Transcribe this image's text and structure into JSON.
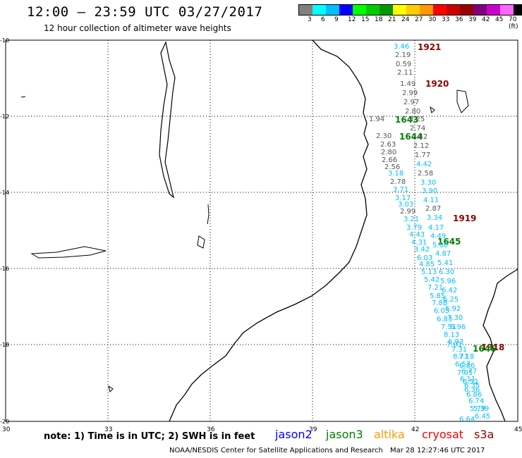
{
  "header": {
    "title": "12:00 – 23:59 UTC 03/27/2017",
    "subtitle": "12 hour collection of altimeter wave heights"
  },
  "scale": {
    "colors": [
      "#808080",
      "#00ffff",
      "#00bfff",
      "#0000ff",
      "#00ff00",
      "#00cc00",
      "#009900",
      "#ffff00",
      "#ffcc00",
      "#ff9900",
      "#ff0000",
      "#cc0000",
      "#990000",
      "#800080",
      "#cc00cc",
      "#ff66ff",
      "#000000"
    ],
    "labels": [
      "3",
      "6",
      "9",
      "12",
      "15",
      "18",
      "21",
      "24",
      "27",
      "30",
      "33",
      "36",
      "39",
      "42",
      "45",
      "70 (ft)"
    ]
  },
  "axes": {
    "lon_ticks": [
      "30",
      "33",
      "36",
      "39",
      "42",
      "45"
    ],
    "lat_ticks": [
      "-10",
      "-12",
      "-14",
      "-16",
      "-18",
      "-20"
    ]
  },
  "passes": [
    {
      "label": "1921",
      "color": "#8b0000"
    },
    {
      "label": "1920",
      "color": "#8b0000"
    },
    {
      "label": "1643",
      "color": "#008000"
    },
    {
      "label": "1644",
      "color": "#008000"
    },
    {
      "label": "1919",
      "color": "#8b0000"
    },
    {
      "label": "1645",
      "color": "#008000"
    },
    {
      "label": "1918",
      "color": "#8b0000"
    },
    {
      "label": "1646",
      "color": "#008000"
    }
  ],
  "wave_values": [
    {
      "v": "3.46",
      "c": "#00bfff"
    },
    {
      "v": "2.19",
      "c": "#555555"
    },
    {
      "v": "0.59",
      "c": "#555555"
    },
    {
      "v": "2.11",
      "c": "#555555"
    },
    {
      "v": "1.49",
      "c": "#555555"
    },
    {
      "v": "2.99",
      "c": "#555555"
    },
    {
      "v": "2.97",
      "c": "#555555"
    },
    {
      "v": "2.80",
      "c": "#555555"
    },
    {
      "v": "1.94",
      "c": "#555555"
    },
    {
      "v": "3.25",
      "c": "#555555"
    },
    {
      "v": "2.74",
      "c": "#555555"
    },
    {
      "v": "2.30",
      "c": "#555555"
    },
    {
      "v": "2.42",
      "c": "#555555"
    },
    {
      "v": "2.63",
      "c": "#555555"
    },
    {
      "v": "2.12",
      "c": "#555555"
    },
    {
      "v": "2.80",
      "c": "#555555"
    },
    {
      "v": "1.77",
      "c": "#555555"
    },
    {
      "v": "2.66",
      "c": "#555555"
    },
    {
      "v": "4.42",
      "c": "#00bfff"
    },
    {
      "v": "2.56",
      "c": "#555555"
    },
    {
      "v": "3.18",
      "c": "#00bfff"
    },
    {
      "v": "2.58",
      "c": "#555555"
    },
    {
      "v": "2.78",
      "c": "#555555"
    },
    {
      "v": "3.30",
      "c": "#00bfff"
    },
    {
      "v": "3.71",
      "c": "#00bfff"
    },
    {
      "v": "3.90",
      "c": "#00bfff"
    },
    {
      "v": "3.17",
      "c": "#00bfff"
    },
    {
      "v": "4.11",
      "c": "#00bfff"
    },
    {
      "v": "3.03",
      "c": "#00bfff"
    },
    {
      "v": "2.87",
      "c": "#555555"
    },
    {
      "v": "2.99",
      "c": "#555555"
    },
    {
      "v": "3.21",
      "c": "#00bfff"
    },
    {
      "v": "3.34",
      "c": "#00bfff"
    },
    {
      "v": "3.79",
      "c": "#00bfff"
    },
    {
      "v": "4.17",
      "c": "#00bfff"
    },
    {
      "v": "4.43",
      "c": "#00bfff"
    },
    {
      "v": "4.49",
      "c": "#00bfff"
    },
    {
      "v": "4.31",
      "c": "#00bfff"
    },
    {
      "v": "5.00",
      "c": "#00bfff"
    },
    {
      "v": "3.42",
      "c": "#00bfff"
    },
    {
      "v": "4.87",
      "c": "#00bfff"
    },
    {
      "v": "6.03",
      "c": "#00bfff"
    },
    {
      "v": "4.85",
      "c": "#00bfff"
    },
    {
      "v": "5.41",
      "c": "#00bfff"
    },
    {
      "v": "5.13",
      "c": "#00bfff"
    },
    {
      "v": "6.30",
      "c": "#00bfff"
    },
    {
      "v": "5.42",
      "c": "#00bfff"
    },
    {
      "v": "5.96",
      "c": "#00bfff"
    },
    {
      "v": "7.21",
      "c": "#00bfff"
    },
    {
      "v": "6.42",
      "c": "#00bfff"
    },
    {
      "v": "5.85",
      "c": "#00bfff"
    },
    {
      "v": "6.25",
      "c": "#00bfff"
    },
    {
      "v": "7.88",
      "c": "#00bfff"
    },
    {
      "v": "6.92",
      "c": "#00bfff"
    },
    {
      "v": "6.05",
      "c": "#00bfff"
    },
    {
      "v": "7.30",
      "c": "#00bfff"
    },
    {
      "v": "6.83",
      "c": "#00bfff"
    },
    {
      "v": "7.51",
      "c": "#00bfff"
    },
    {
      "v": "6.96",
      "c": "#00bfff"
    },
    {
      "v": "8.13",
      "c": "#00bfff"
    },
    {
      "v": "6.93",
      "c": "#00bfff"
    },
    {
      "v": "7.01",
      "c": "#00bfff"
    },
    {
      "v": "7.31",
      "c": "#00bfff"
    },
    {
      "v": "8.71",
      "c": "#00bfff"
    },
    {
      "v": "7.18",
      "c": "#00bfff"
    },
    {
      "v": "6.57",
      "c": "#00bfff"
    },
    {
      "v": "6.86",
      "c": "#00bfff"
    },
    {
      "v": "7.05",
      "c": "#00bfff"
    },
    {
      "v": "6.77",
      "c": "#00bfff"
    },
    {
      "v": "6.11",
      "c": "#00bfff"
    },
    {
      "v": "6.52",
      "c": "#00bfff"
    },
    {
      "v": "6.35",
      "c": "#00bfff"
    },
    {
      "v": "6.36",
      "c": "#00bfff"
    },
    {
      "v": "6.86",
      "c": "#00bfff"
    },
    {
      "v": "6.74",
      "c": "#00bfff"
    },
    {
      "v": "5.79",
      "c": "#00bfff"
    },
    {
      "v": "5.39",
      "c": "#00bfff"
    },
    {
      "v": "6.45",
      "c": "#00bfff"
    },
    {
      "v": "6.64",
      "c": "#00bfff"
    }
  ],
  "footer": {
    "note": "note:  1) Time is in UTC;  2) SWH is in feet",
    "legend": [
      {
        "name": "jason2",
        "color": "#0000ff"
      },
      {
        "name": "jason3",
        "color": "#008000"
      },
      {
        "name": "altika",
        "color": "#ff9900"
      },
      {
        "name": "cryosat",
        "color": "#ff0000"
      },
      {
        "name": "s3a",
        "color": "#8b0000"
      }
    ],
    "credit": "NOAA/NESDIS Center for Satellite Applications and Research",
    "timestamp": "Mar 28 12:27:46 UTC 2017"
  }
}
